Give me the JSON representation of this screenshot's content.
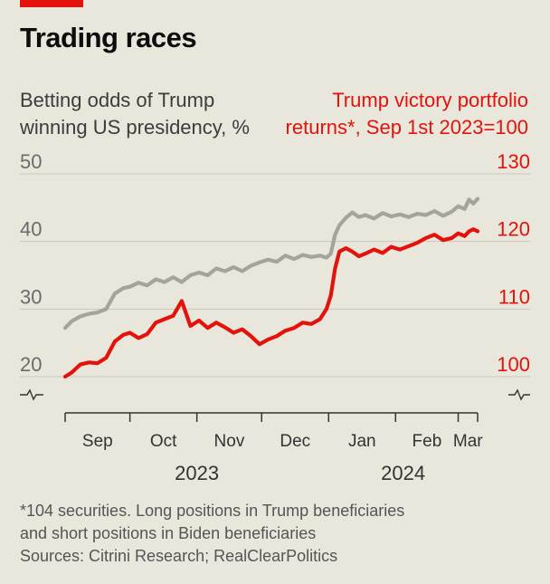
{
  "title": "Trading races",
  "left_axis_label": "Betting odds of Trump winning US presidency, %",
  "right_axis_label": "Trump victory portfolio returns*, Sep 1st 2023=100",
  "footnote": {
    "line1": "*104 securities. Long positions in Trump beneficiaries",
    "line2": "and short positions in Biden beneficiaries",
    "sources": "Sources: Citrini Research; RealClearPolitics"
  },
  "colors": {
    "left_series": "#a4a59a",
    "right_series": "#e3120b",
    "background": "#e9e6dc",
    "accent_bar": "#e3120b"
  },
  "chart_data": {
    "type": "line",
    "x_ticks": [
      "Sep",
      "Oct",
      "Nov",
      "Dec",
      "Jan",
      "Feb",
      "Mar"
    ],
    "x_years": [
      "2023",
      "2024"
    ],
    "y_left": {
      "ticks": [
        "50",
        "40",
        "30",
        "20"
      ],
      "range": [
        20,
        50
      ],
      "unit": "%"
    },
    "y_right": {
      "ticks": [
        "130",
        "120",
        "110",
        "100"
      ],
      "range": [
        100,
        130
      ]
    },
    "grid": true,
    "series": [
      {
        "axis": "left",
        "x": [
          "2023-09-01",
          "2023-09-04",
          "2023-09-08",
          "2023-09-12",
          "2023-09-16",
          "2023-09-20",
          "2023-09-24",
          "2023-09-28",
          "2023-10-01",
          "2023-10-05",
          "2023-10-09",
          "2023-10-13",
          "2023-10-17",
          "2023-10-21",
          "2023-10-25",
          "2023-10-29",
          "2023-11-02",
          "2023-11-06",
          "2023-11-10",
          "2023-11-14",
          "2023-11-18",
          "2023-11-22",
          "2023-11-26",
          "2023-11-30",
          "2023-12-04",
          "2023-12-08",
          "2023-12-12",
          "2023-12-16",
          "2023-12-20",
          "2023-12-24",
          "2023-12-28",
          "2023-12-31",
          "2024-01-02",
          "2024-01-04",
          "2024-01-06",
          "2024-01-09",
          "2024-01-12",
          "2024-01-15",
          "2024-01-18",
          "2024-01-22",
          "2024-01-26",
          "2024-01-30",
          "2024-02-03",
          "2024-02-07",
          "2024-02-11",
          "2024-02-15",
          "2024-02-19",
          "2024-02-23",
          "2024-02-27",
          "2024-03-01",
          "2024-03-04",
          "2024-03-06",
          "2024-03-08",
          "2024-03-10"
        ],
        "values": [
          27.2,
          28.2,
          28.9,
          29.3,
          29.5,
          30.0,
          32.3,
          33.1,
          33.3,
          33.9,
          33.5,
          34.4,
          34.0,
          34.7,
          34.0,
          35.0,
          35.4,
          35.0,
          36.0,
          35.6,
          36.2,
          35.6,
          36.4,
          36.9,
          37.3,
          37.0,
          37.9,
          37.4,
          38.0,
          37.7,
          37.9,
          37.6,
          38.2,
          41.0,
          42.4,
          43.5,
          44.3,
          43.6,
          43.9,
          43.4,
          44.2,
          43.7,
          44.0,
          43.6,
          44.1,
          43.9,
          44.5,
          43.8,
          44.4,
          45.2,
          44.8,
          46.2,
          45.6,
          46.3
        ]
      },
      {
        "axis": "right",
        "x": [
          "2023-09-01",
          "2023-09-04",
          "2023-09-08",
          "2023-09-12",
          "2023-09-16",
          "2023-09-20",
          "2023-09-24",
          "2023-09-28",
          "2023-10-01",
          "2023-10-05",
          "2023-10-09",
          "2023-10-13",
          "2023-10-17",
          "2023-10-21",
          "2023-10-25",
          "2023-10-29",
          "2023-11-02",
          "2023-11-06",
          "2023-11-10",
          "2023-11-14",
          "2023-11-18",
          "2023-11-22",
          "2023-11-26",
          "2023-11-30",
          "2023-12-04",
          "2023-12-08",
          "2023-12-12",
          "2023-12-16",
          "2023-12-20",
          "2023-12-24",
          "2023-12-28",
          "2023-12-31",
          "2024-01-02",
          "2024-01-04",
          "2024-01-06",
          "2024-01-09",
          "2024-01-12",
          "2024-01-15",
          "2024-01-18",
          "2024-01-22",
          "2024-01-26",
          "2024-01-30",
          "2024-02-03",
          "2024-02-07",
          "2024-02-11",
          "2024-02-15",
          "2024-02-19",
          "2024-02-23",
          "2024-02-27",
          "2024-03-01",
          "2024-03-04",
          "2024-03-06",
          "2024-03-08",
          "2024-03-10"
        ],
        "values": [
          100.0,
          100.6,
          101.8,
          102.1,
          102.0,
          102.8,
          105.2,
          106.2,
          106.5,
          105.7,
          106.3,
          108.0,
          108.5,
          109.0,
          111.2,
          107.5,
          108.3,
          107.2,
          108.0,
          107.3,
          106.5,
          107.0,
          106.0,
          104.8,
          105.5,
          106.0,
          106.8,
          107.2,
          108.0,
          107.8,
          108.5,
          110.0,
          112.0,
          116.0,
          118.5,
          119.0,
          118.5,
          117.8,
          118.2,
          118.8,
          118.3,
          119.2,
          118.8,
          119.3,
          119.8,
          120.5,
          121.0,
          120.2,
          120.5,
          121.2,
          120.8,
          121.5,
          121.8,
          121.5
        ]
      }
    ]
  }
}
